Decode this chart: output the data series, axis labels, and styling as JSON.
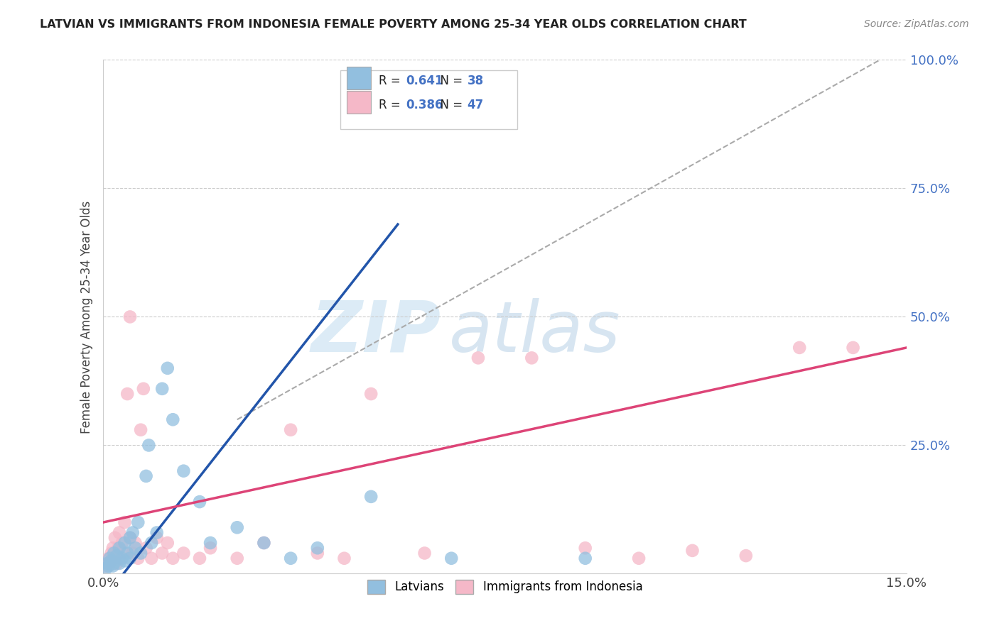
{
  "title": "LATVIAN VS IMMIGRANTS FROM INDONESIA FEMALE POVERTY AMONG 25-34 YEAR OLDS CORRELATION CHART",
  "source": "Source: ZipAtlas.com",
  "ylabel": "Female Poverty Among 25-34 Year Olds",
  "xlim": [
    0.0,
    15.0
  ],
  "ylim": [
    0.0,
    100.0
  ],
  "xtick_labels": [
    "0.0%",
    "15.0%"
  ],
  "ytick_labels": [
    "",
    "25.0%",
    "50.0%",
    "75.0%",
    "100.0%"
  ],
  "legend_labels": [
    "Latvians",
    "Immigrants from Indonesia"
  ],
  "blue_R": "0.641",
  "blue_N": "38",
  "pink_R": "0.386",
  "pink_N": "47",
  "blue_color": "#92bfdf",
  "pink_color": "#f5b8c8",
  "blue_line_color": "#2255aa",
  "pink_line_color": "#dd4477",
  "blue_scatter": [
    [
      0.05,
      1.0
    ],
    [
      0.08,
      2.0
    ],
    [
      0.1,
      1.5
    ],
    [
      0.12,
      3.0
    ],
    [
      0.15,
      2.5
    ],
    [
      0.18,
      1.5
    ],
    [
      0.2,
      4.0
    ],
    [
      0.2,
      2.0
    ],
    [
      0.25,
      3.5
    ],
    [
      0.3,
      5.0
    ],
    [
      0.3,
      2.0
    ],
    [
      0.35,
      3.0
    ],
    [
      0.4,
      6.0
    ],
    [
      0.4,
      2.5
    ],
    [
      0.45,
      4.0
    ],
    [
      0.5,
      7.0
    ],
    [
      0.5,
      3.0
    ],
    [
      0.55,
      8.0
    ],
    [
      0.6,
      5.0
    ],
    [
      0.65,
      10.0
    ],
    [
      0.7,
      4.0
    ],
    [
      0.8,
      19.0
    ],
    [
      0.85,
      25.0
    ],
    [
      0.9,
      6.0
    ],
    [
      1.0,
      8.0
    ],
    [
      1.1,
      36.0
    ],
    [
      1.2,
      40.0
    ],
    [
      1.3,
      30.0
    ],
    [
      1.5,
      20.0
    ],
    [
      1.8,
      14.0
    ],
    [
      2.0,
      6.0
    ],
    [
      2.5,
      9.0
    ],
    [
      3.0,
      6.0
    ],
    [
      3.5,
      3.0
    ],
    [
      4.0,
      5.0
    ],
    [
      5.0,
      15.0
    ],
    [
      6.5,
      3.0
    ],
    [
      9.0,
      3.0
    ]
  ],
  "pink_scatter": [
    [
      0.05,
      1.5
    ],
    [
      0.08,
      2.0
    ],
    [
      0.1,
      3.0
    ],
    [
      0.12,
      2.0
    ],
    [
      0.15,
      4.0
    ],
    [
      0.18,
      5.0
    ],
    [
      0.2,
      3.0
    ],
    [
      0.22,
      7.0
    ],
    [
      0.25,
      2.0
    ],
    [
      0.28,
      5.0
    ],
    [
      0.3,
      8.0
    ],
    [
      0.3,
      3.0
    ],
    [
      0.35,
      6.0
    ],
    [
      0.4,
      10.0
    ],
    [
      0.4,
      4.0
    ],
    [
      0.45,
      35.0
    ],
    [
      0.5,
      50.0
    ],
    [
      0.5,
      7.0
    ],
    [
      0.55,
      4.0
    ],
    [
      0.6,
      6.0
    ],
    [
      0.65,
      3.0
    ],
    [
      0.7,
      28.0
    ],
    [
      0.75,
      36.0
    ],
    [
      0.8,
      5.0
    ],
    [
      0.9,
      3.0
    ],
    [
      1.0,
      7.0
    ],
    [
      1.1,
      4.0
    ],
    [
      1.2,
      6.0
    ],
    [
      1.3,
      3.0
    ],
    [
      1.5,
      4.0
    ],
    [
      1.8,
      3.0
    ],
    [
      2.0,
      5.0
    ],
    [
      2.5,
      3.0
    ],
    [
      3.0,
      6.0
    ],
    [
      3.5,
      28.0
    ],
    [
      4.0,
      4.0
    ],
    [
      4.5,
      3.0
    ],
    [
      5.0,
      35.0
    ],
    [
      6.0,
      4.0
    ],
    [
      7.0,
      42.0
    ],
    [
      8.0,
      42.0
    ],
    [
      9.0,
      5.0
    ],
    [
      10.0,
      3.0
    ],
    [
      11.0,
      4.5
    ],
    [
      12.0,
      3.5
    ],
    [
      13.0,
      44.0
    ],
    [
      14.0,
      44.0
    ]
  ],
  "blue_line_x": [
    0.0,
    5.5
  ],
  "blue_line_y": [
    -5.0,
    68.0
  ],
  "pink_line_x": [
    0.0,
    15.0
  ],
  "pink_line_y": [
    10.0,
    44.0
  ],
  "dash_line_x": [
    2.5,
    14.5
  ],
  "dash_line_y": [
    30.0,
    100.0
  ],
  "watermark_zip": "ZIP",
  "watermark_atlas": "atlas",
  "background_color": "#ffffff",
  "grid_color": "#cccccc"
}
